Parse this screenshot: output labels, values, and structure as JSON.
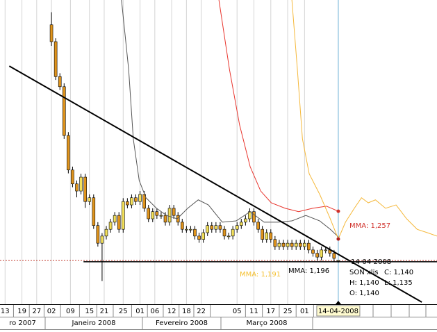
{
  "chart_data": {
    "type": "candlestick",
    "xlim": [
      -12.2,
      91.4
    ],
    "ylim": [
      1.036,
      1.759
    ],
    "xticks": [
      {
        "value": -11,
        "label": "13"
      },
      {
        "value": -7,
        "label": "19"
      },
      {
        "value": -3.5,
        "label": "27"
      },
      {
        "value": 0,
        "label": "02"
      },
      {
        "value": 4.5,
        "label": "09"
      },
      {
        "value": 9,
        "label": "15"
      },
      {
        "value": 12.5,
        "label": "21"
      },
      {
        "value": 17,
        "label": "25"
      },
      {
        "value": 21,
        "label": "01"
      },
      {
        "value": 24.5,
        "label": "06"
      },
      {
        "value": 28.5,
        "label": "12"
      },
      {
        "value": 32,
        "label": "18"
      },
      {
        "value": 35.5,
        "label": "22"
      },
      {
        "value": 44,
        "label": "05"
      },
      {
        "value": 48,
        "label": "11"
      },
      {
        "value": 52,
        "label": "17"
      },
      {
        "value": 56,
        "label": "25"
      },
      {
        "value": 60,
        "label": "01"
      },
      {
        "value": 68,
        "label": "14-04-2008"
      }
    ],
    "month_labels": [
      "ro 2007",
      "Janeiro 2008",
      "Fevereiro 2008",
      "Março 2008"
    ],
    "up_color": "#f3e05a",
    "down_color": "#e0941c",
    "candles": {
      "x": [
        0,
        1,
        2,
        3,
        4,
        5,
        6,
        7,
        8,
        9,
        10,
        11,
        12,
        13,
        14,
        15,
        16,
        17,
        18,
        19,
        20,
        21,
        22,
        23,
        24,
        25,
        26,
        27,
        28,
        29,
        30,
        31,
        32,
        33,
        34,
        35,
        36,
        37,
        38,
        39,
        40,
        41,
        42,
        43,
        44,
        45,
        46,
        47,
        48,
        49,
        50,
        51,
        52,
        53,
        54,
        55,
        56,
        57,
        58,
        59,
        60,
        61,
        62,
        63,
        64,
        65,
        66,
        67,
        68
      ],
      "open": [
        1.7,
        1.66,
        1.577,
        1.553,
        1.437,
        1.355,
        1.322,
        1.305,
        1.338,
        1.28,
        1.289,
        1.223,
        1.181,
        1.198,
        1.214,
        1.231,
        1.247,
        1.214,
        1.28,
        1.272,
        1.289,
        1.28,
        1.297,
        1.264,
        1.239,
        1.256,
        1.247,
        1.247,
        1.231,
        1.264,
        1.247,
        1.231,
        1.214,
        1.214,
        1.214,
        1.198,
        1.19,
        1.206,
        1.223,
        1.214,
        1.223,
        1.214,
        1.198,
        1.198,
        1.214,
        1.223,
        1.231,
        1.239,
        1.256,
        1.231,
        1.214,
        1.19,
        1.206,
        1.19,
        1.173,
        1.181,
        1.173,
        1.181,
        1.173,
        1.181,
        1.173,
        1.181,
        1.165,
        1.157,
        1.148,
        1.165,
        1.165,
        1.157,
        1.14
      ],
      "high": [
        1.73,
        1.668,
        1.585,
        1.561,
        1.445,
        1.363,
        1.33,
        1.346,
        1.346,
        1.297,
        1.297,
        1.231,
        1.205,
        1.222,
        1.239,
        1.255,
        1.255,
        1.288,
        1.288,
        1.297,
        1.297,
        1.305,
        1.305,
        1.272,
        1.264,
        1.264,
        1.255,
        1.255,
        1.272,
        1.272,
        1.255,
        1.239,
        1.222,
        1.222,
        1.222,
        1.206,
        1.214,
        1.231,
        1.231,
        1.231,
        1.231,
        1.222,
        1.206,
        1.222,
        1.231,
        1.239,
        1.247,
        1.264,
        1.264,
        1.239,
        1.222,
        1.214,
        1.214,
        1.198,
        1.189,
        1.189,
        1.189,
        1.189,
        1.189,
        1.189,
        1.189,
        1.189,
        1.173,
        1.165,
        1.173,
        1.173,
        1.173,
        1.165,
        1.14
      ],
      "low": [
        1.65,
        1.569,
        1.545,
        1.429,
        1.347,
        1.314,
        1.29,
        1.297,
        1.265,
        1.272,
        1.215,
        1.173,
        1.091,
        1.19,
        1.206,
        1.223,
        1.206,
        1.206,
        1.264,
        1.264,
        1.272,
        1.272,
        1.256,
        1.231,
        1.231,
        1.239,
        1.239,
        1.223,
        1.223,
        1.239,
        1.223,
        1.206,
        1.206,
        1.206,
        1.19,
        1.182,
        1.182,
        1.198,
        1.206,
        1.206,
        1.206,
        1.19,
        1.19,
        1.19,
        1.206,
        1.215,
        1.223,
        1.231,
        1.223,
        1.206,
        1.182,
        1.182,
        1.182,
        1.165,
        1.165,
        1.165,
        1.165,
        1.165,
        1.165,
        1.165,
        1.165,
        1.157,
        1.149,
        1.14,
        1.14,
        1.157,
        1.149,
        1.137,
        1.135
      ],
      "close": [
        1.66,
        1.577,
        1.553,
        1.437,
        1.355,
        1.322,
        1.305,
        1.338,
        1.28,
        1.289,
        1.223,
        1.181,
        1.198,
        1.214,
        1.231,
        1.247,
        1.214,
        1.28,
        1.272,
        1.289,
        1.28,
        1.297,
        1.264,
        1.239,
        1.256,
        1.247,
        1.247,
        1.231,
        1.264,
        1.247,
        1.231,
        1.214,
        1.214,
        1.214,
        1.198,
        1.19,
        1.206,
        1.223,
        1.214,
        1.223,
        1.214,
        1.198,
        1.198,
        1.214,
        1.223,
        1.231,
        1.239,
        1.256,
        1.231,
        1.214,
        1.19,
        1.206,
        1.19,
        1.173,
        1.181,
        1.173,
        1.181,
        1.173,
        1.181,
        1.173,
        1.181,
        1.165,
        1.157,
        1.148,
        1.165,
        1.165,
        1.157,
        1.145,
        1.14
      ]
    },
    "lines": [
      {
        "color": "#555555",
        "label": "MMA: 1,196",
        "x": [
          16.6,
          18.3,
          19.4,
          20.8,
          22.4,
          24.9,
          27.3,
          29.8,
          32.3,
          34.8,
          37.2,
          40.5,
          43.8,
          47.1,
          50.4,
          53.7,
          57,
          60.3,
          63.6,
          66.1,
          68
        ],
        "values": [
          1.759,
          1.594,
          1.429,
          1.33,
          1.289,
          1.264,
          1.247,
          1.239,
          1.264,
          1.284,
          1.272,
          1.231,
          1.234,
          1.256,
          1.231,
          1.231,
          1.234,
          1.247,
          1.234,
          1.214,
          1.196
        ]
      },
      {
        "color": "#e8342c",
        "label": "MMA: 1,257",
        "x": [
          39.7,
          42.2,
          44.6,
          47.1,
          49.6,
          52.1,
          55.4,
          58.6,
          61.9,
          65.2,
          68
        ],
        "values": [
          1.759,
          1.594,
          1.462,
          1.363,
          1.305,
          1.277,
          1.264,
          1.256,
          1.264,
          1.269,
          1.257
        ]
      },
      {
        "color": "#f5b83a",
        "label": "MMA: 1,191",
        "x": [
          57,
          58.3,
          59.5,
          61.1,
          63.6,
          66.1,
          68,
          69.7,
          71.8,
          73.5,
          75.1,
          76.8,
          79.2,
          81.7,
          84.2,
          86.7,
          89.1,
          91.4
        ],
        "values": [
          1.759,
          1.594,
          1.429,
          1.346,
          1.297,
          1.239,
          1.191,
          1.231,
          1.264,
          1.289,
          1.277,
          1.284,
          1.264,
          1.272,
          1.239,
          1.214,
          1.206,
          1.198
        ]
      }
    ],
    "trendlines": [
      {
        "x": [
          -10,
          87.8
        ],
        "values": [
          1.602,
          1.041
        ]
      },
      {
        "x": [
          7.6,
          91.4
        ],
        "values": [
          1.137,
          1.137
        ]
      }
    ],
    "last_close_line": 1.14,
    "cursor_x": 68,
    "cursor_date": "14-04-2008",
    "info": {
      "symbol": "SON xlis",
      "close": "C: 1,140",
      "high": "H: 1,140",
      "low": "L: 1,135",
      "open": "O: 1,140"
    }
  }
}
